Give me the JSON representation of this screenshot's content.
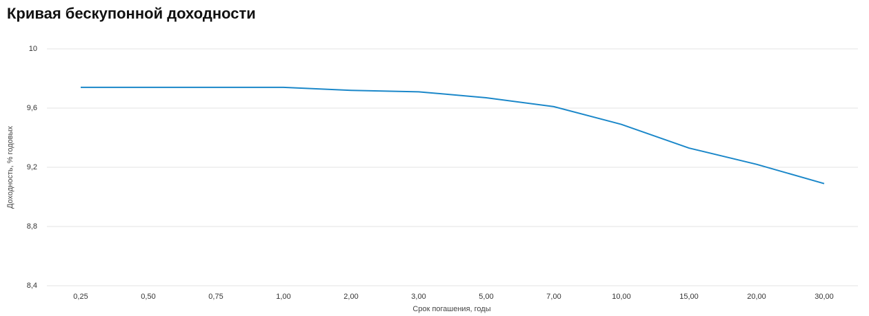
{
  "chart_data": {
    "type": "line",
    "title": "Кривая бескупонной доходности",
    "x_label": "Срок погашения, годы",
    "y_label": "Доходность, % годовых",
    "categories": [
      "0,25",
      "0,50",
      "0,75",
      "1,00",
      "2,00",
      "3,00",
      "5,00",
      "7,00",
      "10,00",
      "15,00",
      "20,00",
      "30,00"
    ],
    "series": [
      {
        "name": "Доходность",
        "color": "#1a87c9",
        "values": [
          9.74,
          9.74,
          9.74,
          9.74,
          9.72,
          9.71,
          9.67,
          9.61,
          9.49,
          9.33,
          9.22,
          9.09
        ]
      }
    ],
    "ylim": [
      8.4,
      10
    ],
    "yticks": [
      {
        "value": 8.4,
        "label": "8,4"
      },
      {
        "value": 8.8,
        "label": "8,8"
      },
      {
        "value": 9.2,
        "label": "9,2"
      },
      {
        "value": 9.6,
        "label": "9,6"
      },
      10
    ],
    "grid": true
  }
}
